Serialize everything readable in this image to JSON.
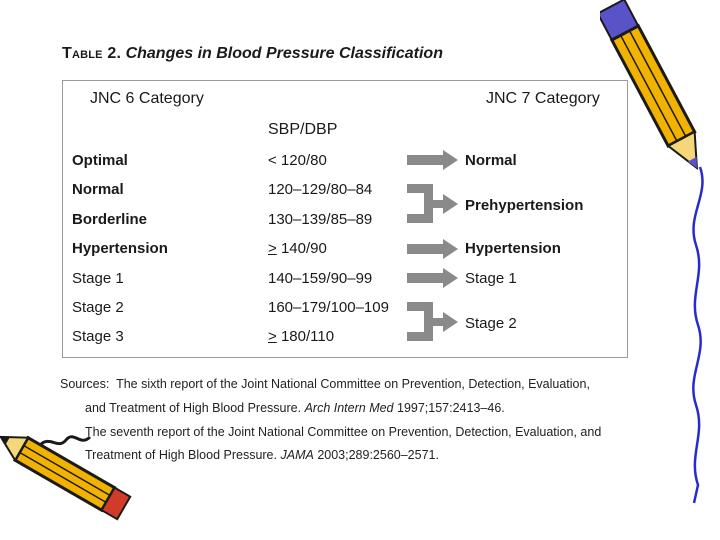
{
  "title": {
    "prefix": "Table 2.",
    "text": "Changes in Blood Pressure Classification"
  },
  "headers": {
    "jnc6": "JNC 6 Category",
    "jnc7": "JNC 7 Category",
    "sbp": "SBP/DBP"
  },
  "rows": [
    {
      "jnc6": "Optimal",
      "range": "< 120/80"
    },
    {
      "jnc6": "Normal",
      "range": "120–129/80–84"
    },
    {
      "jnc6": "Borderline",
      "range": "130–139/85–89"
    },
    {
      "jnc6": "Hypertension",
      "range": "140/90",
      "range_prefix": ">"
    },
    {
      "jnc6": "Stage 1",
      "range": "140–159/90–99"
    },
    {
      "jnc6": "Stage 2",
      "range": "160–179/100–109"
    },
    {
      "jnc6": "Stage 3",
      "range": "180/110",
      "range_prefix": ">"
    }
  ],
  "jnc7_categories": [
    "Normal",
    "Prehypertension",
    "Hypertension",
    "Stage 1",
    "Stage 2"
  ],
  "sources": {
    "label": "Sources:",
    "line1": "The sixth report of the Joint National Committee on Prevention, Detection, Evaluation,",
    "line2_pre": "and Treatment of High Blood Pressure.",
    "line2_journal": "Arch Intern Med",
    "line2_post": "1997;157:2413–46.",
    "line3": "The seventh report of the Joint National Committee on Prevention, Detection, Evaluation, and",
    "line4_pre": "Treatment of High Blood Pressure.",
    "line4_journal": "JAMA",
    "line4_post": "2003;289:2560–2571."
  },
  "colors": {
    "arrow": "#8a8a8a",
    "pencil_body": "#f2b200",
    "pencil_tip": "#d23a2a",
    "pencil_outline": "#1a1a1a",
    "pencil_ferrule": "#5a52c8"
  }
}
